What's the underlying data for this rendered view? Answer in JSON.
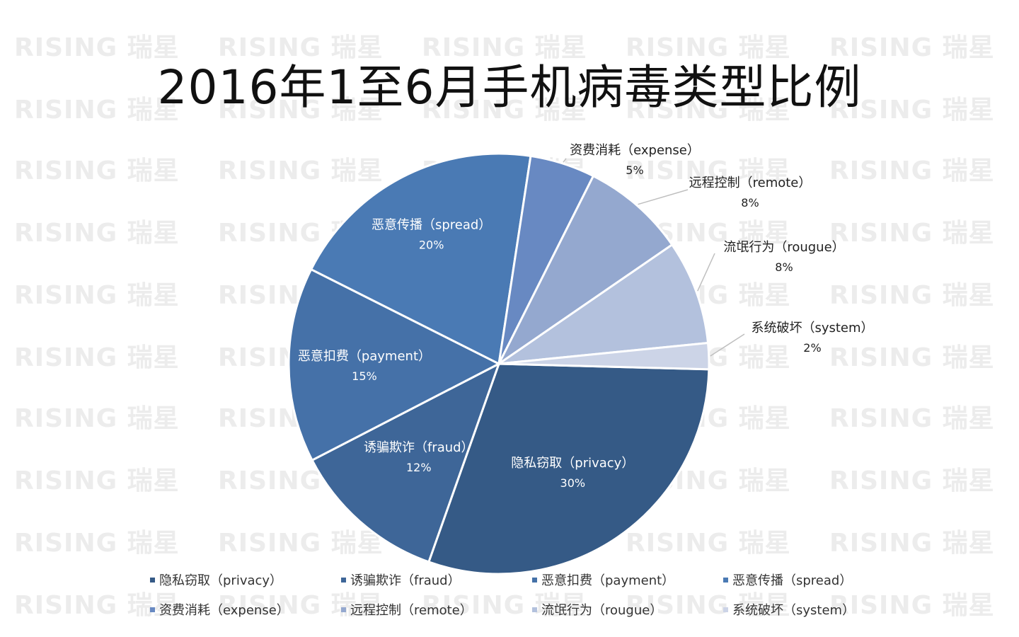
{
  "title": "2016年1至6月手机病毒类型比例",
  "watermark": {
    "text": "RISING 瑞星"
  },
  "chart_data": {
    "type": "pie",
    "title": "2016年1至6月手机病毒类型比例",
    "slices": [
      {
        "name": "隐私窃取（privacy）",
        "value": 30,
        "label": "30%",
        "color": "#355a86"
      },
      {
        "name": "诱骗欺诈（fraud）",
        "value": 12,
        "label": "12%",
        "color": "#3e6698"
      },
      {
        "name": "恶意扣费（payment）",
        "value": 15,
        "label": "15%",
        "color": "#4571a8"
      },
      {
        "name": "恶意传播（spread）",
        "value": 20,
        "label": "20%",
        "color": "#4a7ab4"
      },
      {
        "name": "资费消耗（expense）",
        "value": 5,
        "label": "5%",
        "color": "#6889c2"
      },
      {
        "name": "远程控制（remote）",
        "value": 8,
        "label": "8%",
        "color": "#94a8cf"
      },
      {
        "name": "流氓行为（rougue）",
        "value": 8,
        "label": "8%",
        "color": "#b3c1dd"
      },
      {
        "name": "系统破坏（system）",
        "value": 2,
        "label": "2%",
        "color": "#ccd4e7"
      }
    ],
    "legend_position": "bottom"
  }
}
